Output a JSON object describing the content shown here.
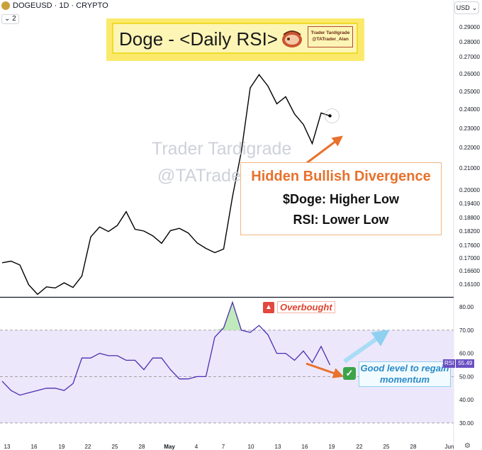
{
  "header": {
    "symbol": "DOGEUSD · 1D · CRYPTO",
    "indicator_count": "2",
    "currency": "USD",
    "currency_icon": "chevron-down-icon"
  },
  "title_banner": {
    "text": "Doge - <Daily RSI>",
    "handle_line1": "Trader Tardigrade",
    "handle_line2": "@TATrader_Alan"
  },
  "watermark": {
    "line1": "Trader Tardigrade",
    "line2": "@TATrader_Alan"
  },
  "divergence_note": {
    "title": "Hidden Bullish Divergence",
    "line1": "$Doge: Higher Low",
    "line2": "RSI: Lower Low"
  },
  "overbought_label": "Overbought",
  "good_level_label": "Good level to regain momentum",
  "rsi_tag": {
    "name": "RSI",
    "value": "55.49"
  },
  "chart_data": [
    {
      "type": "line",
      "name": "DOGEUSD daily price",
      "x_labels": [
        "13",
        "16",
        "19",
        "22",
        "25",
        "28",
        "May",
        "4",
        "7",
        "10",
        "13",
        "16",
        "19",
        "22",
        "25",
        "28",
        "Jun"
      ],
      "y_ticks": [
        "0.29000",
        "0.28000",
        "0.27000",
        "0.26000",
        "0.25000",
        "0.24000",
        "0.23000",
        "0.22000",
        "0.21000",
        "0.20000",
        "0.19400",
        "0.18800",
        "0.18200",
        "0.17600",
        "0.17000",
        "0.16600",
        "0.16100"
      ],
      "y_tick_values": [
        0.29,
        0.28,
        0.27,
        0.26,
        0.25,
        0.24,
        0.23,
        0.22,
        0.21,
        0.2,
        0.194,
        0.188,
        0.182,
        0.176,
        0.17,
        0.166,
        0.161
      ],
      "x": [
        0,
        1,
        2,
        3,
        4,
        5,
        6,
        7,
        8,
        9,
        10,
        11,
        12,
        13,
        14,
        15,
        16,
        17,
        18,
        19,
        20,
        21,
        22,
        23,
        24,
        25,
        26,
        27,
        28,
        29,
        30,
        31,
        32,
        33,
        34,
        35,
        36,
        37
      ],
      "values": [
        0.1685,
        0.169,
        0.1678,
        0.1608,
        0.1572,
        0.16,
        0.1596,
        0.1615,
        0.1598,
        0.164,
        0.1795,
        0.1838,
        0.1818,
        0.1845,
        0.1905,
        0.1828,
        0.182,
        0.18,
        0.1768,
        0.1822,
        0.1832,
        0.1812,
        0.177,
        0.1745,
        0.1725,
        0.1742,
        0.197,
        0.218,
        0.252,
        0.2595,
        0.253,
        0.243,
        0.247,
        0.2375,
        0.232,
        0.222,
        0.238,
        0.2365
      ],
      "scale": "log",
      "grid": false
    },
    {
      "type": "line",
      "name": "RSI",
      "x": [
        0,
        1,
        2,
        3,
        4,
        5,
        6,
        7,
        8,
        9,
        10,
        11,
        12,
        13,
        14,
        15,
        16,
        17,
        18,
        19,
        20,
        21,
        22,
        23,
        24,
        25,
        26,
        27,
        28,
        29,
        30,
        31,
        32,
        33,
        34,
        35,
        36,
        37
      ],
      "values": [
        48,
        44,
        42,
        43,
        44,
        45,
        45,
        44,
        47,
        58,
        58,
        60,
        59,
        59,
        57,
        57,
        53,
        58,
        58,
        53,
        49,
        49,
        50,
        50,
        67,
        71,
        82,
        70,
        69,
        72,
        68,
        60,
        60,
        57,
        61,
        56,
        63,
        55
      ],
      "y_ticks": [
        "80.00",
        "70.00",
        "60.00",
        "50.00",
        "40.00",
        "30.00"
      ],
      "y_tick_values": [
        80,
        70,
        60,
        50,
        40,
        30
      ],
      "bands": [
        70,
        50,
        30
      ],
      "ylim": [
        26,
        84
      ],
      "last_value": 55.49
    }
  ]
}
